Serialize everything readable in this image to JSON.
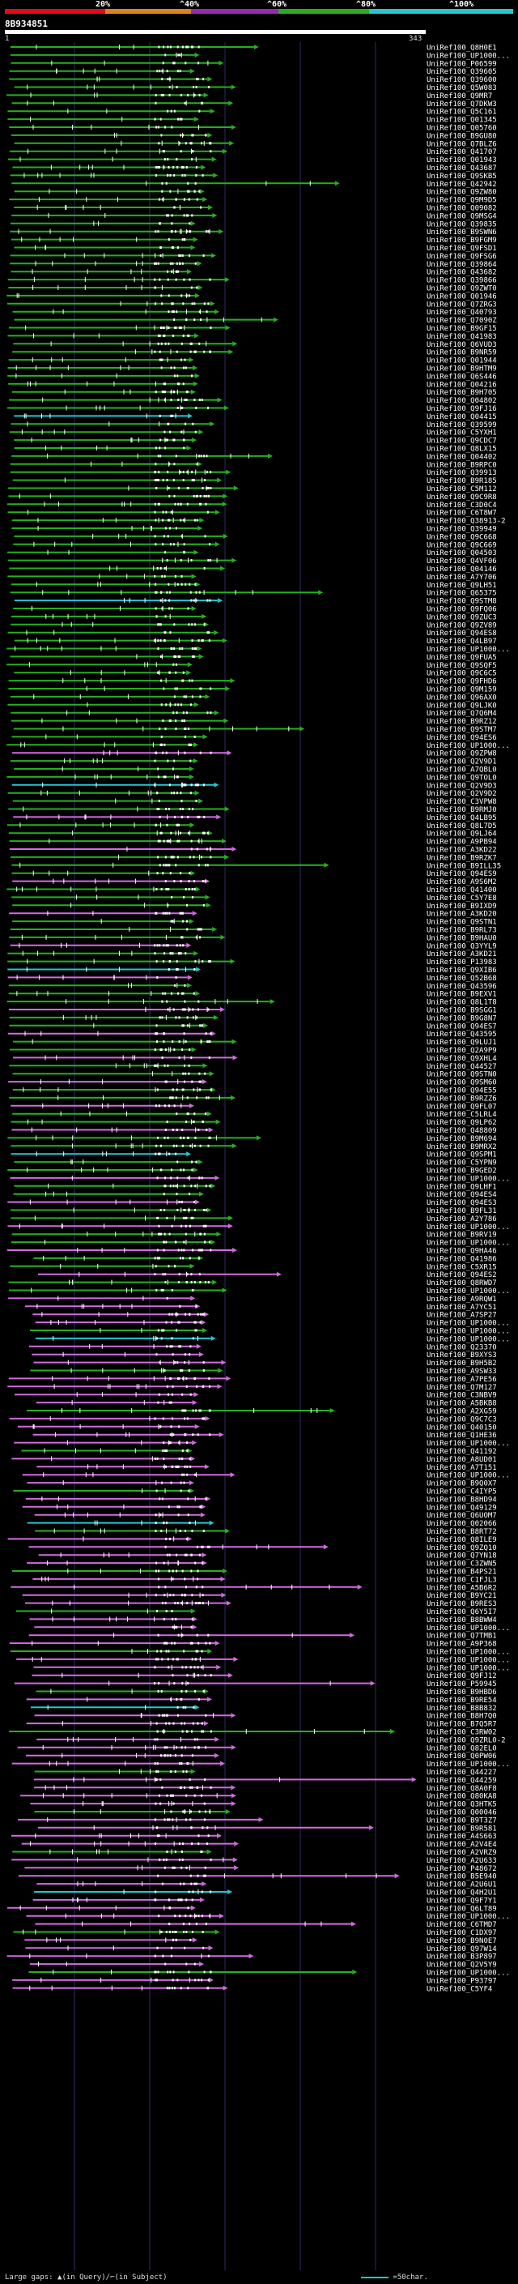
{
  "legend": {
    "labels": [
      "20%",
      "^40%",
      "^60%",
      "^80%",
      "^100%"
    ],
    "colors": [
      "#e00c1c",
      "#e0821c",
      "#9a27b8",
      "#26b01e",
      "#22c7cf"
    ]
  },
  "query": {
    "id": "8B934851",
    "start": "1",
    "end": "343"
  },
  "hit_ids": [
    "UniRef100_Q8H0E1",
    "UniRef100_UP1000...",
    "UniRef100_P06599",
    "UniRef100_Q39605",
    "UniRef100_Q39600",
    "UniRef100_Q5W083",
    "UniRef100_Q9MR7",
    "UniRef100_Q7DKW3",
    "UniRef100_Q5C161",
    "UniRef100_Q01345",
    "UniRef100_Q05760",
    "UniRef100_B9GU80",
    "UniRef100_Q7BLZ6",
    "UniRef100_Q41707",
    "UniRef100_Q01943",
    "UniRef100_Q43687",
    "UniRef100_Q9SKB5",
    "UniRef100_Q42942",
    "UniRef100_Q9ZW80",
    "UniRef100_Q9M9D5",
    "UniRef100_Q09082",
    "UniRef100_Q9MSG4",
    "UniRef100_Q39835",
    "UniRef100_B9SWN6",
    "UniRef100_B9FGM9",
    "UniRef100_Q9FSD1",
    "UniRef100_Q9FSG6",
    "UniRef100_Q39864",
    "UniRef100_Q43682",
    "UniRef100_Q39866",
    "UniRef100_Q9ZWT0",
    "UniRef100_Q01946",
    "UniRef100_Q7ZRG3",
    "UniRef100_Q40793",
    "UniRef100_Q7090Z",
    "UniRef100_B9GF15",
    "UniRef100_Q41983",
    "UniRef100_Q6VUD3",
    "UniRef100_B9NR59",
    "UniRef100_Q01944",
    "UniRef100_B9HTM9",
    "UniRef100_Q6S446",
    "UniRef100_Q04216",
    "UniRef100_B9H705",
    "UniRef100_Q04802",
    "UniRef100_Q9FJ16",
    "UniRef100_Q04415",
    "UniRef100_Q39599",
    "UniRef100_C5YXH1",
    "UniRef100_Q9CDC7",
    "UniRef100_Q8LX15",
    "UniRef100_Q04402",
    "UniRef100_B9RPC0",
    "UniRef100_Q39913",
    "UniRef100_B9R185",
    "UniRef100_C5M112",
    "UniRef100_Q9C9R8",
    "UniRef100_C3D0C4",
    "UniRef100_C6T8W7",
    "UniRef100_Q38913-2",
    "UniRef100_Q39949",
    "UniRef100_Q9C668",
    "UniRef100_Q9C669",
    "UniRef100_Q04503",
    "UniRef100_Q4VF06",
    "UniRef100_Q04146",
    "UniRef100_A7Y706",
    "UniRef100_Q9LH51",
    "UniRef100_Q65375",
    "UniRef100_Q9STM8",
    "UniRef100_Q9FQ06",
    "UniRef100_Q9ZUC3",
    "UniRef100_Q9ZV89",
    "UniRef100_Q94ES8",
    "UniRef100_Q4LB97",
    "UniRef100_UP1000...",
    "UniRef100_Q9FUA5",
    "UniRef100_Q9SQF5",
    "UniRef100_Q9C6C5",
    "UniRef100_Q9FHD6",
    "UniRef100_Q9M159",
    "UniRef100_Q96AX0",
    "UniRef100_Q9LJK0",
    "UniRef100_Q7Q6M4",
    "UniRef100_B9RZ12",
    "UniRef100_Q9STM7",
    "UniRef100_Q94ES6",
    "UniRef100_UP1000...",
    "UniRef100_Q9ZPW8",
    "UniRef100_Q2V9D1",
    "UniRef100_A7QBL0",
    "UniRef100_Q9TOL0",
    "UniRef100_Q2V9D3",
    "UniRef100_Q2V9D2",
    "UniRef100_C3VPW8",
    "UniRef100_B9RMJ0",
    "UniRef100_Q4LB95",
    "UniRef100_Q8L7D5",
    "UniRef100_Q9LJ64",
    "UniRef100_A9PB94",
    "UniRef100_A3KD22",
    "UniRef100_B9RZK7",
    "UniRef100_B9ILL35",
    "UniRef100_Q94ES9",
    "UniRef100_A9S6M2",
    "UniRef100_Q41400",
    "UniRef100_C5Y7E8",
    "UniRef100_B9IXD9",
    "UniRef100_A3KD20",
    "UniRef100_Q9STN1",
    "UniRef100_B9RL73",
    "UniRef100_B9HAU0",
    "UniRef100_Q3YYL9",
    "UniRef100_A3KD21",
    "UniRef100_P13983",
    "UniRef100_Q9XIB6",
    "UniRef100_Q52B68",
    "UniRef100_Q43596",
    "UniRef100_B9EXV1",
    "UniRef100_Q8L1T8",
    "UniRef100_B9SGG1",
    "UniRef100_B9G8N7",
    "UniRef100_Q94ES7",
    "UniRef100_Q43595",
    "UniRef100_Q9LUJ1",
    "UniRef100_Q2A9P9",
    "UniRef100_Q9XHL4",
    "UniRef100_Q44527",
    "UniRef100_Q9STN0",
    "UniRef100_Q9SM60",
    "UniRef100_Q94E55",
    "UniRef100_B9RZZ6",
    "UniRef100_Q9FL07",
    "UniRef100_C5LRL4",
    "UniRef100_Q9LP62",
    "UniRef100_Q48809",
    "UniRef100_B9M694",
    "UniRef100_B9MRX2",
    "UniRef100_Q9SPM1",
    "UniRef100_C5YPN9",
    "UniRef100_B9GED2",
    "UniRef100_UP1000...",
    "UniRef100_Q9LHF1",
    "UniRef100_Q94ES4",
    "UniRef100_Q94ES3",
    "UniRef100_B9FL31",
    "UniRef100_A2Y786",
    "UniRef100_UP1000...",
    "UniRef100_B9RV19",
    "UniRef100_UP1000...",
    "UniRef100_Q9HA46",
    "UniRef100_Q41986",
    "UniRef100_C5XR15",
    "UniRef100_Q94ES2",
    "UniRef100_Q8RWD7",
    "UniRef100_UP1000...",
    "UniRef100_A9RQW1",
    "UniRef100_A7YC51",
    "UniRef100_A7SP27",
    "UniRef100_UP1000...",
    "UniRef100_UP1000...",
    "UniRef100_UP1000...",
    "UniRef100_Q23370",
    "UniRef100_B9XYS3",
    "UniRef100_B9H5B2",
    "UniRef100_A9SW33",
    "UniRef100_A7PE56",
    "UniRef100_Q7M127",
    "UniRef100_C3NBV9",
    "UniRef100_A5BKB8",
    "UniRef100_A2XG59",
    "UniRef100_Q9C7C3",
    "UniRef100_Q40150",
    "UniRef100_Q1HE36",
    "UniRef100_UP1000...",
    "UniRef100_Q41192",
    "UniRef100_A8UD01",
    "UniRef100_A7T151",
    "UniRef100_UP1000...",
    "UniRef100_B9Q0X7",
    "UniRef100_C4IYP5",
    "UniRef100_B8HD94",
    "UniRef100_Q49129",
    "UniRef100_Q6UOM7",
    "UniRef100_Q02066",
    "UniRef100_B8RT72",
    "UniRef100_Q8ILE9",
    "UniRef100_Q9ZQ10",
    "UniRef100_Q7YN18",
    "UniRef100_C3ZWN5",
    "UniRef100_B4PS21",
    "UniRef100_C1FJL3",
    "UniRef100_A5B6R2",
    "UniRef100_B9YC21",
    "UniRef100_B9RES3",
    "UniRef100_Q6Y5I7",
    "UniRef100_B8BWW4",
    "UniRef100_UP1000...",
    "UniRef100_Q7TMB1",
    "UniRef100_A9P368",
    "UniRef100_UP1000...",
    "UniRef100_UP1000...",
    "UniRef100_UP1000...",
    "UniRef100_Q9FJ12",
    "UniRef100_P59945",
    "UniRef100_B9HBD6",
    "UniRef100_B9RE54",
    "UniRef100_B8B832",
    "UniRef100_B8H7Q0",
    "UniRef100_B7Q5R7",
    "UniRef100_C3RW02",
    "UniRef100_Q9ZRL0-2",
    "UniRef100_Q82EL0",
    "UniRef100_Q0PW06",
    "UniRef100_UP1000...",
    "UniRef100_Q44227",
    "UniRef100_Q44259",
    "UniRef100_Q8A0F8",
    "UniRef100_Q80KA8",
    "UniRef100_Q3HTK5",
    "UniRef100_Q00046",
    "UniRef100_B9T3Z7",
    "UniRef100_B9R581",
    "UniRef100_A4S663",
    "UniRef100_A2V4E4",
    "UniRef100_A2VRZ9",
    "UniRef100_A2U633",
    "UniRef100_P48672",
    "UniRef100_B5E940",
    "UniRef100_A2U6U1",
    "UniRef100_Q4H2U1",
    "UniRef100_Q9F7Y1",
    "UniRef100_Q6LT89",
    "UniRef100_UP1000...",
    "UniRef100_C6TMD7",
    "UniRef100_C1DX97",
    "UniRef100_B9N0E7",
    "UniRef100_Q97W14",
    "UniRef100_B3P897",
    "UniRef100_Q2V5Y9",
    "UniRef100_UP1000...",
    "UniRef100_P93797",
    "UniRef100_C5YF4"
  ],
  "footer": {
    "gaps_label": "Large gaps:",
    "gaps_query": "(in Query)/",
    "gaps_subject": "(in Subject)",
    "scale_label": "=50char."
  }
}
